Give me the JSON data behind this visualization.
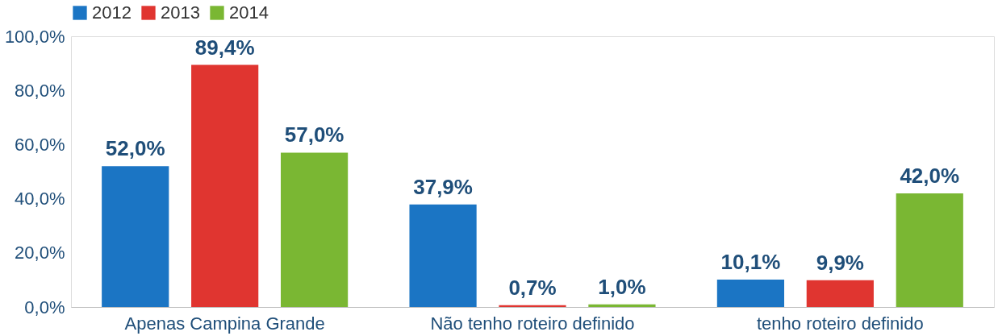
{
  "chart_data": {
    "type": "bar",
    "categories": [
      "Apenas Campina Grande",
      "Não tenho roteiro definido",
      "tenho roteiro definido"
    ],
    "series": [
      {
        "name": "2012",
        "color": "#1b75c4",
        "values": [
          52.0,
          37.9,
          10.1
        ],
        "value_labels": [
          "52,0%",
          "37,9%",
          "10,1%"
        ]
      },
      {
        "name": "2013",
        "color": "#e03530",
        "values": [
          89.4,
          0.7,
          9.9
        ],
        "value_labels": [
          "89,4%",
          "0,7%",
          "9,9%"
        ]
      },
      {
        "name": "2014",
        "color": "#7ab733",
        "values": [
          57.0,
          1.0,
          42.0
        ],
        "value_labels": [
          "57,0%",
          "1,0%",
          "42,0%"
        ]
      }
    ],
    "ylim": [
      0,
      100
    ],
    "yticks": [
      {
        "value": 0,
        "label": "0,0%"
      },
      {
        "value": 20,
        "label": "20,0%"
      },
      {
        "value": 40,
        "label": "40,0%"
      },
      {
        "value": 60,
        "label": "60,0%"
      },
      {
        "value": 80,
        "label": "80,0%"
      },
      {
        "value": 100,
        "label": "100,0%"
      }
    ],
    "grid": false,
    "legend": "top"
  }
}
